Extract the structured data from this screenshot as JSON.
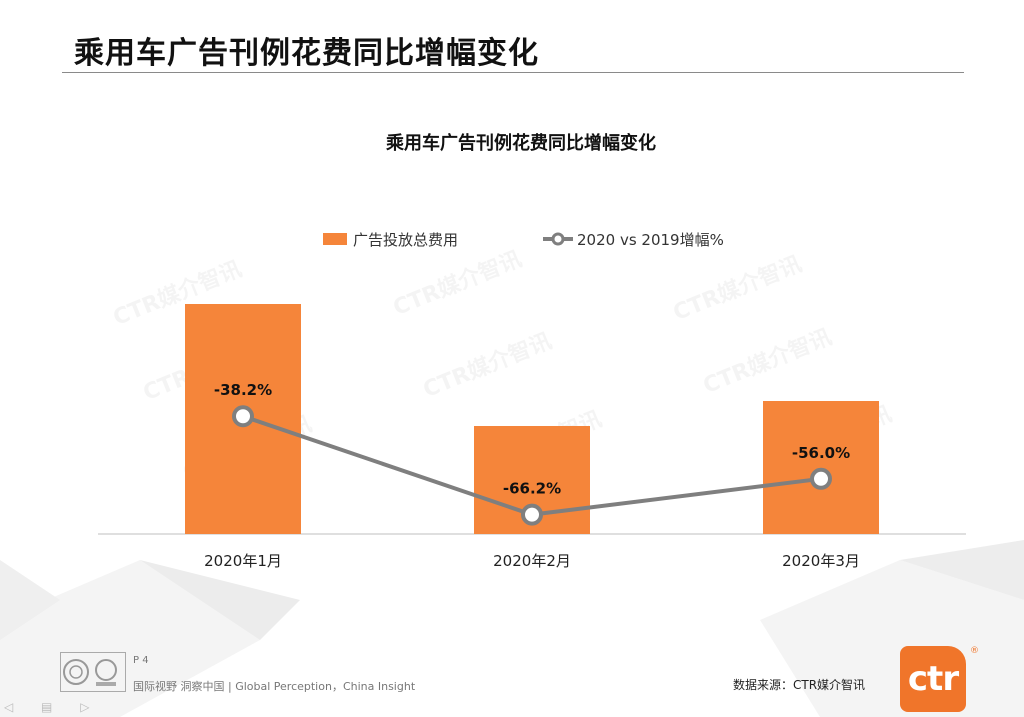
{
  "page": {
    "title": "乘用车广告刊例花费同比增幅变化",
    "page_number": "P 4",
    "slogan": "国际视野  洞察中国  |   Global Perception，China Insight",
    "source": "数据来源：CTR媒介智讯",
    "logo_text": "ctr",
    "logo_reg": "®",
    "watermark": "CTR媒介智讯",
    "colors": {
      "bar": "#f5853a",
      "line": "#7f7f7f",
      "accent": "#f0752a"
    }
  },
  "chart_data": {
    "type": "bar",
    "title": "乘用车广告刊例花费同比增幅变化",
    "categories": [
      "2020年1月",
      "2020年2月",
      "2020年3月"
    ],
    "series": [
      {
        "name": "广告投放总费用",
        "type": "bar",
        "values": [
          230,
          108,
          133
        ]
      },
      {
        "name": "2020 vs 2019增幅%",
        "type": "line",
        "values": [
          -38.2,
          -66.2,
          -56.0
        ],
        "labels": [
          "-38.2%",
          "-66.2%",
          "-56.0%"
        ]
      }
    ],
    "legend": "top-center",
    "grid": false
  }
}
